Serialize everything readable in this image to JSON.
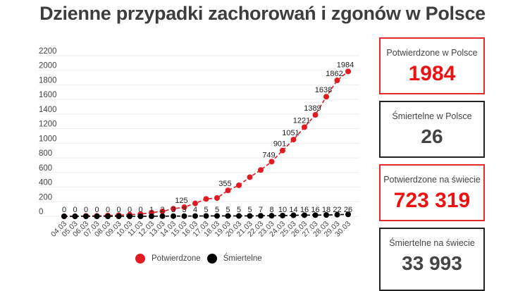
{
  "title": "Dzienne przypadki zachorowań i zgonów w Polsce",
  "cards": [
    {
      "label": "Potwierdzone w Polsce",
      "value": "1984",
      "style": "red"
    },
    {
      "label": "Śmiertelne w Polsce",
      "value": "26",
      "style": "black"
    },
    {
      "label": "Potwierdzone na świecie",
      "value": "723 319",
      "style": "red"
    },
    {
      "label": "Śmiertelne na świecie",
      "value": "33 993",
      "style": "black"
    }
  ],
  "legend": {
    "confirmed": "Potwierdzone",
    "deaths": "Śmiertelne"
  },
  "colors": {
    "confirmed": "#e01b22",
    "deaths": "#000000",
    "grid": "#eeeeee",
    "card_red": "#e32a2a",
    "card_black": "#222222"
  },
  "chart_data": {
    "type": "line",
    "title": "Dzienne przypadki zachorowań i zgonów w Polsce",
    "xlabel": "",
    "ylabel": "",
    "ylim": [
      0,
      2200
    ],
    "yticks": [
      0,
      200,
      400,
      600,
      800,
      1000,
      1200,
      1400,
      1600,
      1800,
      2000,
      2200
    ],
    "grid": true,
    "legend_position": "bottom",
    "categories": [
      "04.03",
      "05.03",
      "06.03",
      "07.03",
      "08.03",
      "09.03",
      "10.03",
      "11.03",
      "12.03",
      "13.03",
      "14.03",
      "15.03",
      "16.03",
      "17.03",
      "18.03",
      "19.03",
      "20.03",
      "21.03",
      "22.03",
      "23.03",
      "24.03",
      "25.03",
      "26.03",
      "27.03",
      "28.03",
      "29.03",
      "30.03"
    ],
    "series": [
      {
        "name": "Potwierdzone",
        "color": "#e01b22",
        "values": [
          1,
          1,
          5,
          5,
          11,
          16,
          22,
          31,
          51,
          68,
          104,
          125,
          177,
          238,
          251,
          355,
          425,
          536,
          634,
          749,
          901,
          1051,
          1221,
          1389,
          1638,
          1862,
          1984
        ],
        "labeled_points": {
          "15.03": 125,
          "19.03": 355,
          "23.03": 749,
          "24.03": 901,
          "25.03": 1051,
          "26.03": 1221,
          "27.03": 1389,
          "28.03": 1638,
          "29.03": 1862,
          "30.03": 1984
        }
      },
      {
        "name": "Śmiertelne",
        "color": "#000000",
        "values": [
          0,
          0,
          0,
          0,
          0,
          0,
          0,
          0,
          1,
          2,
          3,
          3,
          4,
          5,
          5,
          5,
          5,
          5,
          7,
          8,
          10,
          14,
          16,
          16,
          18,
          22,
          26
        ]
      }
    ]
  }
}
